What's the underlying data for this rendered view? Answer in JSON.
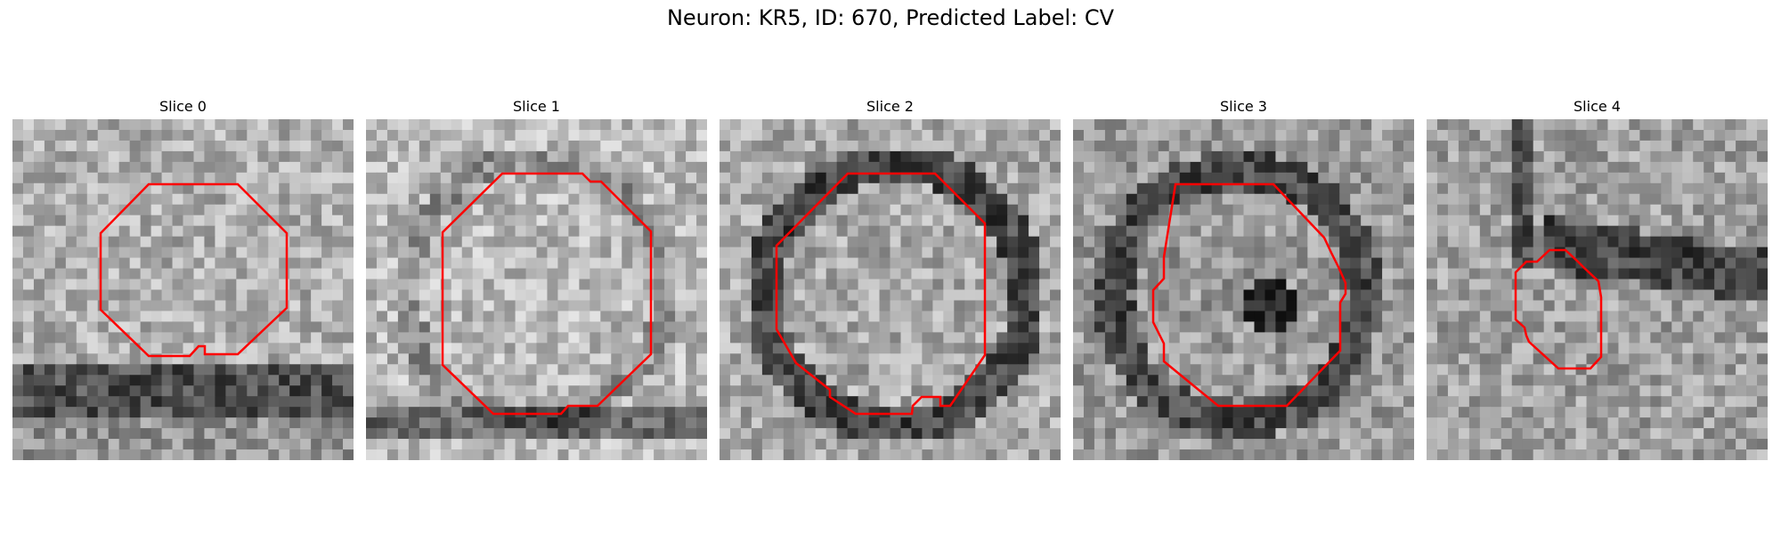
{
  "figure": {
    "title": "Neuron: KR5, ID: 670, Predicted Label: CV"
  },
  "panels": [
    {
      "title": "Slice 0"
    },
    {
      "title": "Slice 1"
    },
    {
      "title": "Slice 2"
    },
    {
      "title": "Slice 3"
    },
    {
      "title": "Slice 4"
    }
  ],
  "colors": {
    "contour": "#ff0000",
    "background": "#ffffff"
  }
}
